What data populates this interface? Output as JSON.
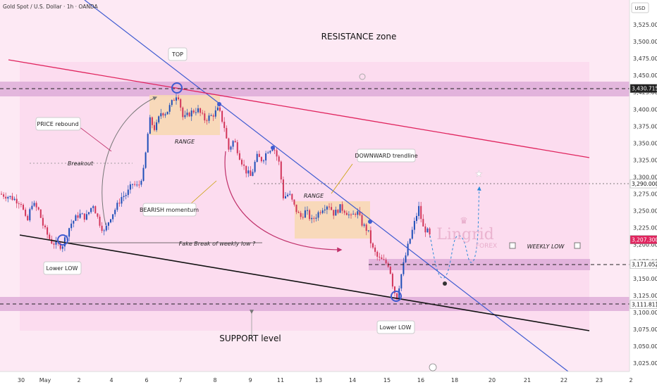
{
  "header": {
    "title": "Gold Spot / U.S. Dollar · 1h · OANDA",
    "currency": "USD"
  },
  "chart_data": {
    "type": "candlestick",
    "title": "",
    "xlabel": "",
    "ylabel": "",
    "currency": "USD",
    "ylim": [
      3005,
      3560
    ],
    "y_ticks": [
      3025,
      3050,
      3075,
      3100,
      3125,
      3150,
      3175,
      3200,
      3225,
      3250,
      3275,
      3300,
      3325,
      3350,
      3375,
      3400,
      3425,
      3450,
      3475,
      3500,
      3525
    ],
    "x_ticks": [
      "30",
      "May",
      "2",
      "4",
      "6",
      "7",
      "8",
      "9",
      "11",
      "13",
      "14",
      "15",
      "16",
      "18",
      "20",
      "21",
      "22",
      "23",
      "2"
    ],
    "price_tags": [
      {
        "value": 3430.715,
        "label": "3,430.715",
        "style": "dark"
      },
      {
        "value": 3290.0,
        "label": "3,290.000",
        "style": "light"
      },
      {
        "value": 3207.3,
        "label": "3,207.300",
        "style": "red"
      },
      {
        "value": 3171.052,
        "label": "3,171.052",
        "style": "light"
      },
      {
        "value": 3111.811,
        "label": "3,111.811",
        "style": "light"
      }
    ],
    "annotations": {
      "resistance": "RESISTANCE zone",
      "support": "SUPPORT level",
      "top": "TOP",
      "price_rebound": "PRICE rebound",
      "breakout": "Breakout",
      "range1": "RANGE",
      "range2": "RANGE",
      "bearish": "BEARISH momentum",
      "downward": "DOWNWARD trendline",
      "fake_break": "Fake Break of weekly low ?",
      "lower_low_left": "Lower LOW",
      "lower_low_right": "Lower LOW",
      "weekly_low": "WEEKLY LOW",
      "watermark_main": "Lingrid",
      "watermark_sub": "FOREX"
    },
    "colors": {
      "up": "#1e4fb8",
      "down": "#d2355a",
      "trendline": "#3f5bd1",
      "resistance_line": "#e0245e",
      "support_line": "#111111",
      "zone": "#d9a6d6",
      "range_box": "#f7d8b0"
    }
  }
}
